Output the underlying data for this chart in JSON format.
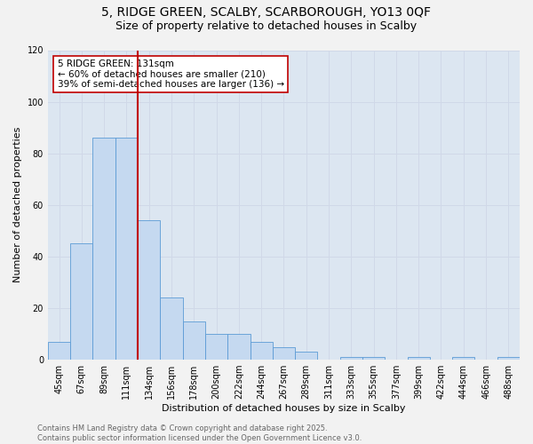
{
  "title_line1": "5, RIDGE GREEN, SCALBY, SCARBOROUGH, YO13 0QF",
  "title_line2": "Size of property relative to detached houses in Scalby",
  "xlabel": "Distribution of detached houses by size in Scalby",
  "ylabel": "Number of detached properties",
  "bar_labels": [
    "45sqm",
    "67sqm",
    "89sqm",
    "111sqm",
    "134sqm",
    "156sqm",
    "178sqm",
    "200sqm",
    "222sqm",
    "244sqm",
    "267sqm",
    "289sqm",
    "311sqm",
    "333sqm",
    "355sqm",
    "377sqm",
    "399sqm",
    "422sqm",
    "444sqm",
    "466sqm",
    "488sqm"
  ],
  "bar_values": [
    7,
    45,
    86,
    86,
    54,
    24,
    15,
    10,
    10,
    7,
    5,
    3,
    0,
    1,
    1,
    0,
    1,
    0,
    1,
    0,
    1
  ],
  "bar_color": "#c5d9f0",
  "bar_edge_color": "#5b9bd5",
  "vline_index": 4,
  "vline_color": "#c00000",
  "annotation_text": "5 RIDGE GREEN: 131sqm\n← 60% of detached houses are smaller (210)\n39% of semi-detached houses are larger (136) →",
  "annotation_box_color": "#ffffff",
  "annotation_border_color": "#c00000",
  "ylim": [
    0,
    120
  ],
  "yticks": [
    0,
    20,
    40,
    60,
    80,
    100,
    120
  ],
  "grid_color": "#d0d8e8",
  "plot_bg_color": "#dce6f1",
  "fig_bg_color": "#f2f2f2",
  "footer_text": "Contains HM Land Registry data © Crown copyright and database right 2025.\nContains public sector information licensed under the Open Government Licence v3.0.",
  "title_fontsize": 10,
  "subtitle_fontsize": 9,
  "axis_label_fontsize": 8,
  "tick_fontsize": 7,
  "annotation_fontsize": 7.5,
  "footer_fontsize": 6
}
